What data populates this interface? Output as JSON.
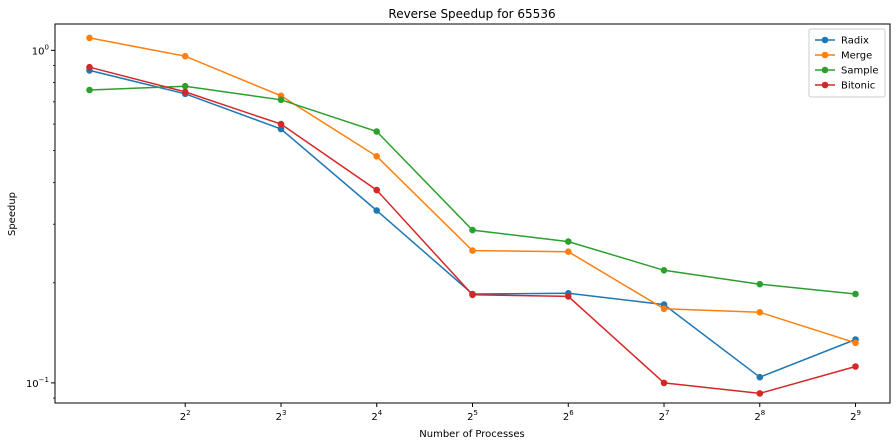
{
  "chart_data": {
    "type": "line",
    "title": "Reverse Speedup for 65536",
    "xlabel": "Number of Processes",
    "ylabel": "Speedup",
    "x_scale": "log2",
    "y_scale": "log10",
    "x": [
      2,
      4,
      8,
      16,
      32,
      64,
      128,
      256,
      512
    ],
    "x_tick_values": [
      4,
      8,
      16,
      32,
      64,
      128,
      256,
      512
    ],
    "x_tick_labels": [
      {
        "base": "2",
        "exp": "2"
      },
      {
        "base": "2",
        "exp": "3"
      },
      {
        "base": "2",
        "exp": "4"
      },
      {
        "base": "2",
        "exp": "5"
      },
      {
        "base": "2",
        "exp": "6"
      },
      {
        "base": "2",
        "exp": "7"
      },
      {
        "base": "2",
        "exp": "8"
      },
      {
        "base": "2",
        "exp": "9"
      }
    ],
    "y_major_ticks": [
      {
        "value": 1,
        "base": "10",
        "exp": "0"
      },
      {
        "value": 0.1,
        "base": "10",
        "exp": "−1"
      }
    ],
    "ylim": [
      0.087,
      1.2
    ],
    "grid": false,
    "legend_position": "top-right",
    "series": [
      {
        "name": "Radix",
        "color": "#1f77b4",
        "values": [
          0.87,
          0.74,
          0.58,
          0.33,
          0.185,
          0.186,
          0.172,
          0.104,
          0.135
        ]
      },
      {
        "name": "Merge",
        "color": "#ff7f0e",
        "values": [
          1.09,
          0.96,
          0.73,
          0.48,
          0.25,
          0.248,
          0.167,
          0.163,
          0.132
        ]
      },
      {
        "name": "Sample",
        "color": "#2ca02c",
        "values": [
          0.76,
          0.78,
          0.71,
          0.57,
          0.288,
          0.266,
          0.218,
          0.198,
          0.185
        ]
      },
      {
        "name": "Bitonic",
        "color": "#d62728",
        "values": [
          0.89,
          0.75,
          0.6,
          0.38,
          0.184,
          0.182,
          0.1,
          0.093,
          0.112
        ]
      }
    ]
  }
}
